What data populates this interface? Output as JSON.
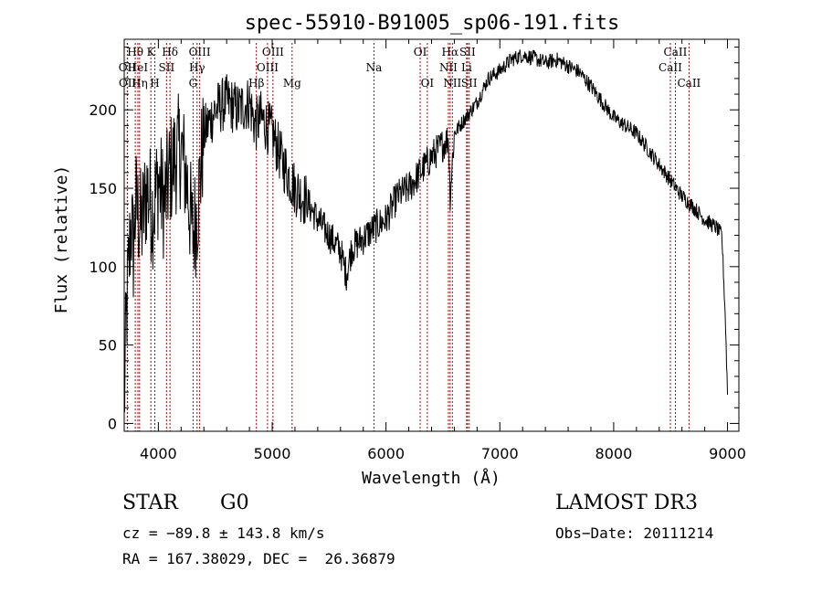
{
  "chart_data": {
    "type": "line",
    "title": "spec-55910-B91005_sp06-191.fits",
    "xlabel": "Wavelength (Å)",
    "ylabel": "Flux (relative)",
    "xlim": [
      3700,
      9100
    ],
    "ylim": [
      -5,
      245
    ],
    "xticks": [
      4000,
      5000,
      6000,
      7000,
      8000,
      9000
    ],
    "xtick_labels": [
      "4000",
      "5000",
      "6000",
      "7000",
      "8000",
      "9000"
    ],
    "yticks": [
      0,
      50,
      100,
      150,
      200
    ],
    "ytick_labels": [
      "0",
      "50",
      "100",
      "150",
      "200"
    ],
    "grid": false,
    "series": [
      {
        "name": "flux",
        "x": [
          3700,
          3720,
          3740,
          3760,
          3780,
          3800,
          3850,
          3900,
          3950,
          4000,
          4050,
          4100,
          4150,
          4200,
          4250,
          4300,
          4340,
          4400,
          4500,
          4600,
          4700,
          4800,
          4850,
          4900,
          5000,
          5100,
          5200,
          5300,
          5400,
          5500,
          5600,
          5650,
          5700,
          5800,
          5900,
          6000,
          6100,
          6200,
          6300,
          6400,
          6500,
          6550,
          6563,
          6600,
          6700,
          6800,
          6900,
          7000,
          7100,
          7200,
          7300,
          7400,
          7500,
          7600,
          7700,
          7800,
          7900,
          8000,
          8100,
          8200,
          8300,
          8400,
          8500,
          8600,
          8700,
          8800,
          8900,
          8950,
          8980,
          9000
        ],
        "y": [
          10,
          70,
          100,
          130,
          110,
          140,
          125,
          150,
          135,
          155,
          140,
          160,
          170,
          175,
          155,
          120,
          135,
          185,
          200,
          205,
          200,
          205,
          190,
          195,
          185,
          165,
          150,
          142,
          130,
          120,
          110,
          95,
          112,
          118,
          125,
          130,
          145,
          150,
          160,
          170,
          178,
          182,
          145,
          185,
          195,
          205,
          220,
          225,
          232,
          235,
          233,
          230,
          232,
          228,
          224,
          215,
          205,
          195,
          190,
          185,
          175,
          165,
          155,
          145,
          138,
          130,
          125,
          120,
          70,
          20
        ]
      }
    ],
    "line_labels": [
      {
        "label": "OII",
        "wavelength": 3727,
        "row": 2
      },
      {
        "label": "OII",
        "wavelength": 3729,
        "row": 3
      },
      {
        "label": "Hθ",
        "wavelength": 3797,
        "row": 1
      },
      {
        "label": "HeI",
        "wavelength": 3820,
        "row": 2
      },
      {
        "label": "Hη",
        "wavelength": 3835,
        "row": 3
      },
      {
        "label": "K",
        "wavelength": 3934,
        "row": 1
      },
      {
        "label": "H",
        "wavelength": 3969,
        "row": 3
      },
      {
        "label": "SII",
        "wavelength": 4072,
        "row": 2
      },
      {
        "label": "Hδ",
        "wavelength": 4102,
        "row": 1
      },
      {
        "label": "OIII",
        "wavelength": 4363,
        "row": 1
      },
      {
        "label": "Hγ",
        "wavelength": 4340,
        "row": 2
      },
      {
        "label": "G",
        "wavelength": 4305,
        "row": 3
      },
      {
        "label": "Hβ",
        "wavelength": 4861,
        "row": 3
      },
      {
        "label": "OIII",
        "wavelength": 5007,
        "row": 1
      },
      {
        "label": "OIII",
        "wavelength": 4959,
        "row": 2
      },
      {
        "label": "Mg",
        "wavelength": 5175,
        "row": 3
      },
      {
        "label": "Na",
        "wavelength": 5894,
        "row": 2
      },
      {
        "label": "OI",
        "wavelength": 6300,
        "row": 1
      },
      {
        "label": "OI",
        "wavelength": 6363,
        "row": 3
      },
      {
        "label": "Hα",
        "wavelength": 6563,
        "row": 1
      },
      {
        "label": "NII",
        "wavelength": 6548,
        "row": 2
      },
      {
        "label": "NII",
        "wavelength": 6583,
        "row": 3
      },
      {
        "label": "SII",
        "wavelength": 6716,
        "row": 1
      },
      {
        "label": "Li",
        "wavelength": 6708,
        "row": 2
      },
      {
        "label": "SII",
        "wavelength": 6731,
        "row": 3
      },
      {
        "label": "CaII",
        "wavelength": 8542,
        "row": 1
      },
      {
        "label": "CaII",
        "wavelength": 8498,
        "row": 2
      },
      {
        "label": "CaII",
        "wavelength": 8662,
        "row": 3
      }
    ]
  },
  "info": {
    "class": "STAR",
    "subclass": "G0",
    "survey": "LAMOST DR3",
    "cz": "cz = −89.8 ± 143.8 km/s",
    "obs_date": "Obs−Date: 20111214",
    "coords": "RA = 167.38029, DEC =  26.36879"
  }
}
